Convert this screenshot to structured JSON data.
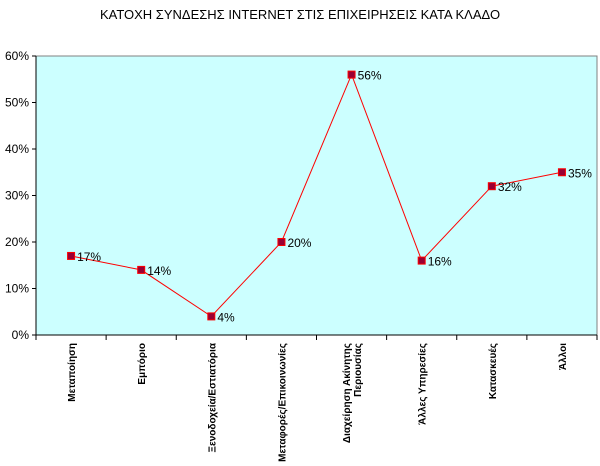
{
  "chart_data": {
    "type": "line",
    "title": "ΚΑΤΟΧΗ ΣΥΝΔΕΣΗΣ INTERNET ΣΤΙΣ ΕΠΙΧΕΙΡΗΣΕΙΣ ΚΑΤΑ ΚΛΑΔΟ",
    "xlabel": "",
    "ylabel": "",
    "categories": [
      [
        "Μεταποίηση"
      ],
      [
        "Εμπόριο"
      ],
      [
        "Ξενοδοχεία/Εστιατόρια"
      ],
      [
        "Μεταφορές/Επικοινωνίες"
      ],
      [
        "Διαχείρηση Ακίνητης",
        "Περιουσίας"
      ],
      [
        "Άλλες Υπηρεσίες"
      ],
      [
        "Κατασκευές"
      ],
      [
        "Άλλοι"
      ]
    ],
    "series": [
      {
        "values": [
          17,
          14,
          4,
          20,
          56,
          16,
          32,
          35
        ]
      }
    ],
    "data_labels": [
      "17%",
      "14%",
      "4%",
      "20%",
      "56%",
      "16%",
      "32%",
      "35%"
    ],
    "y_ticks": [
      "0%",
      "10%",
      "20%",
      "30%",
      "40%",
      "50%",
      "60%"
    ],
    "ylim": [
      0,
      60
    ],
    "grid": false,
    "legend": "none",
    "colors": {
      "plot_background": "#ccffff",
      "line": "#ff0000",
      "marker_fill": "#990033",
      "marker_stroke": "#ff0000",
      "axis": "#000000"
    }
  }
}
